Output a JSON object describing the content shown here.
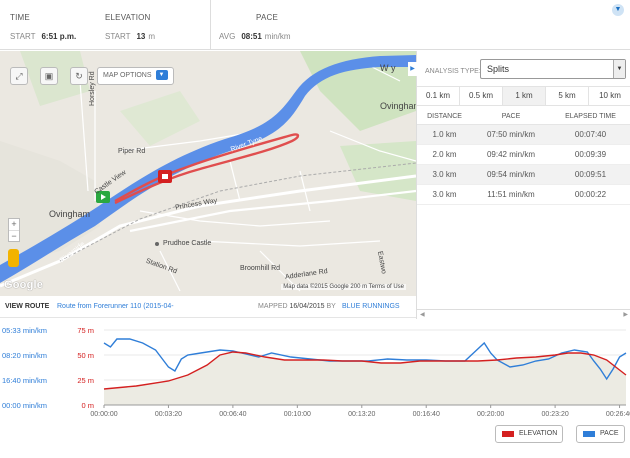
{
  "stats": {
    "time": {
      "label": "TIME",
      "start_label": "START",
      "start_value": "6:51 p.m."
    },
    "elevation": {
      "label": "ELEVATION",
      "start_label": "START",
      "start_value": "13",
      "unit": "m"
    },
    "pace": {
      "label": "PACE",
      "avg_label": "AVG",
      "avg_value": "08:51",
      "unit": "min/km"
    }
  },
  "map": {
    "options_label": "MAP OPTIONS",
    "labels": {
      "ovingham_left": "Ovingham",
      "ovingham_right": "Ovingham",
      "river_tyne": "River Tyne",
      "princess_way": "Princess Way",
      "prudhoe_castle": "Prudhoe Castle",
      "piper_rd": "Piper Rd",
      "castle_view": "Castle View",
      "horsley_rd": "Horsley Rd",
      "station_rd": "Station Rd",
      "broomhill_rd": "Broomhill Rd",
      "adderlane_rd": "Adderlane Rd",
      "riverside": "Riverside",
      "w_label": "W y",
      "eastwood": "Eastwo"
    },
    "google_logo": "Google",
    "attribution": "Map data ©2015 Google   200 m       Terms of Use",
    "zoom_in": "+",
    "zoom_out": "−"
  },
  "route": {
    "view_label": "VIEW ROUTE",
    "name": "Route from Forerunner 110 (2015-04-",
    "mapped_label": "MAPPED",
    "mapped_date": "16/04/2015",
    "by_label": "BY",
    "owner": "BLUE RUNNINGS"
  },
  "analysis": {
    "type_label": "ANALYSIS TYPE:",
    "type_value": "Splits",
    "tabs": [
      "0.1 km",
      "0.5 km",
      "1 km",
      "5 km",
      "10 km"
    ],
    "active_tab": "1 km",
    "headers": {
      "distance": "DISTANCE",
      "pace": "PACE",
      "elapsed": "ELAPSED TIME"
    },
    "rows": [
      {
        "distance": "1.0 km",
        "pace": "07:50 min/km",
        "elapsed": "00:07:40"
      },
      {
        "distance": "2.0 km",
        "pace": "09:42 min/km",
        "elapsed": "00:09:39"
      },
      {
        "distance": "3.0 km",
        "pace": "09:54 min/km",
        "elapsed": "00:09:51"
      },
      {
        "distance": "3.0 km",
        "pace": "11:51 min/km",
        "elapsed": "00:00:22"
      }
    ]
  },
  "chart_data": {
    "type": "line",
    "title": "",
    "xlabel": "",
    "ylabel": "",
    "x_ticks": [
      "00:00:00",
      "00:03:20",
      "00:06:40",
      "00:10:00",
      "00:13:20",
      "00:16:40",
      "00:20:00",
      "00:23:20",
      "00:26:40"
    ],
    "pace_ticks": [
      "05:33 min/km",
      "08:20 min/km",
      "16:40 min/km",
      "00:00 min/km"
    ],
    "elevation_ticks": [
      "75 m",
      "50 m",
      "25 m",
      "0 m"
    ],
    "elevation_ylim": [
      0,
      75
    ],
    "x_range_seconds": [
      0,
      1620
    ],
    "series": [
      {
        "name": "ELEVATION",
        "color": "#d42020",
        "axis": "elevation_m",
        "x_seconds": [
          0,
          100,
          200,
          260,
          320,
          360,
          400,
          440,
          500,
          560,
          620,
          680,
          740,
          800,
          860,
          920,
          980,
          1040,
          1100,
          1160,
          1220,
          1280,
          1340,
          1400,
          1440,
          1480,
          1520,
          1560,
          1600,
          1620
        ],
        "values": [
          16,
          19,
          24,
          30,
          40,
          50,
          53,
          52,
          48,
          45,
          45,
          45,
          44,
          44,
          42,
          42,
          44,
          44,
          44,
          44,
          45,
          47,
          48,
          50,
          52,
          52,
          50,
          45,
          35,
          30
        ]
      },
      {
        "name": "PACE",
        "color": "#2f7ed8",
        "axis": "pace",
        "x_seconds": [
          0,
          20,
          40,
          80,
          120,
          160,
          200,
          220,
          240,
          260,
          300,
          360,
          400,
          440,
          480,
          520,
          580,
          640,
          700,
          760,
          820,
          880,
          940,
          1000,
          1060,
          1120,
          1160,
          1180,
          1200,
          1220,
          1260,
          1300,
          1340,
          1380,
          1420,
          1460,
          1500,
          1520,
          1540,
          1560,
          1580,
          1600,
          1620
        ],
        "values": [
          62,
          58,
          66,
          66,
          62,
          55,
          38,
          34,
          46,
          50,
          52,
          55,
          54,
          51,
          48,
          52,
          48,
          46,
          44,
          44,
          44,
          46,
          45,
          45,
          44,
          44,
          56,
          62,
          52,
          45,
          38,
          40,
          44,
          46,
          52,
          55,
          53,
          44,
          36,
          26,
          36,
          48,
          52
        ]
      }
    ]
  },
  "legend": {
    "elevation": "ELEVATION",
    "pace": "PACE"
  },
  "colors": {
    "accent": "#2f7ed8",
    "route": "#e04e4e",
    "river": "#5b8fe8",
    "elevation": "#d42020",
    "pace": "#2f7ed8"
  }
}
